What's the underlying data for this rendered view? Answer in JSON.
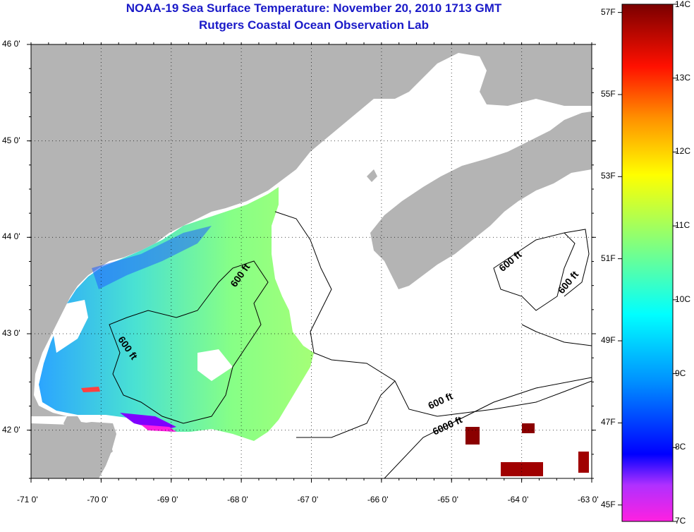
{
  "title": {
    "line1": "NOAA-19 Sea Surface Temperature:  November 20, 2010 1713 GMT",
    "line2": "Rutgers Coastal Ocean Observation Lab"
  },
  "map": {
    "lat_labels": [
      "46 0'",
      "45 0'",
      "44 0'",
      "43 0'",
      "42 0'"
    ],
    "lon_labels": [
      "-71 0'",
      "-70 0'",
      "-69 0'",
      "-68 0'",
      "-67 0'",
      "-66 0'",
      "-65 0'",
      "-64 0'",
      "-63 0'"
    ],
    "lat_range": [
      41.5,
      46.0
    ],
    "lon_range": [
      -71.0,
      -63.0
    ],
    "grid": "dotted",
    "contour_labels": [
      "600 ft",
      "600 ft",
      "600 ft",
      "600 ft",
      "600 ft",
      "6000 ft"
    ],
    "colors": {
      "land": "#b4b4b4",
      "no_data": "#ffffff",
      "title": "#1a1ac8"
    }
  },
  "colorbar": {
    "celsius_labels": [
      "14C",
      "13C",
      "12C",
      "11C",
      "10C",
      "9C",
      "8C",
      "7C"
    ],
    "fahrenheit_labels": [
      "57F",
      "55F",
      "53F",
      "51F",
      "49F",
      "47F",
      "45F"
    ],
    "range_c": [
      7,
      14
    ],
    "colors": [
      "#ff00ff",
      "#8020ff",
      "#0000ff",
      "#0080ff",
      "#00ffff",
      "#80ff80",
      "#ffff00",
      "#ff8000",
      "#ff0000",
      "#800000"
    ]
  }
}
